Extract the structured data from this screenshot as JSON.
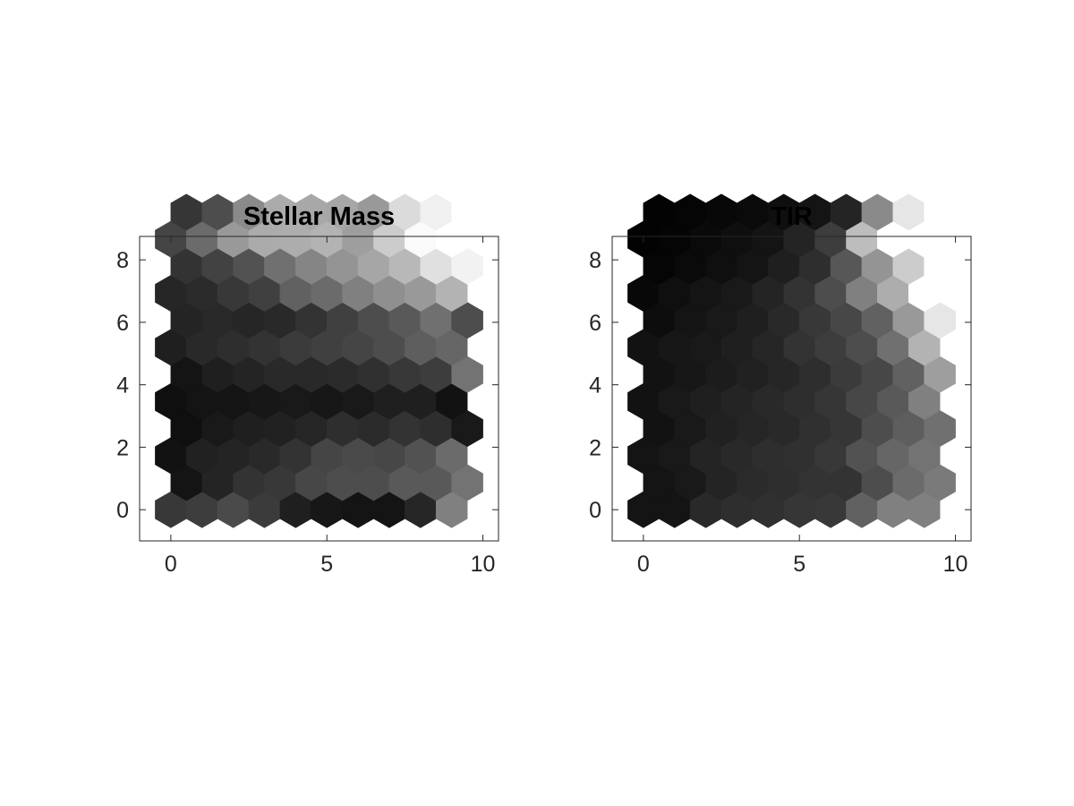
{
  "chart_data": [
    {
      "type": "heatmap",
      "title": "Stellar Mass",
      "xlabel": "",
      "ylabel": "",
      "xlim": [
        -1,
        10.5
      ],
      "ylim": [
        -1,
        8.75
      ],
      "xticks": [
        0,
        5,
        10
      ],
      "yticks": [
        0,
        2,
        4,
        6,
        8
      ],
      "grid": false,
      "colormap": "gray",
      "cells": [
        [
          0.78,
          0.76,
          0.71,
          0.77,
          0.88,
          0.91,
          0.92,
          0.92,
          0.85,
          0.5
        ],
        [
          0.92,
          0.86,
          0.8,
          0.78,
          0.72,
          0.7,
          0.7,
          0.65,
          0.65,
          0.55
        ],
        [
          0.93,
          0.87,
          0.86,
          0.84,
          0.8,
          0.73,
          0.71,
          0.72,
          0.68,
          0.58
        ],
        [
          0.94,
          0.9,
          0.88,
          0.87,
          0.85,
          0.82,
          0.83,
          0.8,
          0.82,
          0.9
        ],
        [
          0.94,
          0.92,
          0.92,
          0.91,
          0.9,
          0.91,
          0.9,
          0.88,
          0.88,
          0.93
        ],
        [
          0.92,
          0.88,
          0.86,
          0.84,
          0.84,
          0.83,
          0.81,
          0.78,
          0.76,
          0.55
        ],
        [
          0.88,
          0.84,
          0.82,
          0.8,
          0.77,
          0.75,
          0.73,
          0.7,
          0.63,
          0.6
        ],
        [
          0.86,
          0.84,
          0.85,
          0.84,
          0.8,
          0.75,
          0.7,
          0.65,
          0.56,
          0.7
        ],
        [
          0.85,
          0.83,
          0.78,
          0.75,
          0.62,
          0.58,
          0.5,
          0.44,
          0.4,
          0.3
        ],
        [
          0.8,
          0.74,
          0.68,
          0.56,
          0.48,
          0.42,
          0.35,
          0.28,
          0.12,
          0.05
        ],
        [
          0.73,
          0.58,
          0.4,
          0.33,
          0.32,
          0.3,
          0.38,
          0.2,
          0.02,
          0.0
        ],
        [
          0.79,
          0.7,
          0.46,
          0.33,
          0.34,
          0.35,
          0.4,
          0.14,
          0.06,
          0.0
        ]
      ]
    },
    {
      "type": "heatmap",
      "title": "TIR",
      "xlabel": "",
      "ylabel": "",
      "xlim": [
        -1,
        10.5
      ],
      "ylim": [
        -1,
        8.75
      ],
      "xticks": [
        0,
        5,
        10
      ],
      "yticks": [
        0,
        2,
        4,
        6,
        8
      ],
      "grid": false,
      "colormap": "gray",
      "cells": [
        [
          0.92,
          0.92,
          0.84,
          0.82,
          0.81,
          0.79,
          0.78,
          0.62,
          0.5,
          0.5
        ],
        [
          0.92,
          0.9,
          0.86,
          0.83,
          0.82,
          0.8,
          0.8,
          0.7,
          0.58,
          0.52
        ],
        [
          0.92,
          0.9,
          0.86,
          0.84,
          0.82,
          0.81,
          0.78,
          0.68,
          0.6,
          0.55
        ],
        [
          0.93,
          0.9,
          0.87,
          0.85,
          0.84,
          0.81,
          0.79,
          0.7,
          0.63,
          0.56
        ],
        [
          0.93,
          0.9,
          0.88,
          0.86,
          0.84,
          0.82,
          0.79,
          0.72,
          0.65,
          0.5
        ],
        [
          0.93,
          0.91,
          0.89,
          0.87,
          0.85,
          0.82,
          0.77,
          0.72,
          0.62,
          0.38
        ],
        [
          0.93,
          0.91,
          0.9,
          0.88,
          0.85,
          0.8,
          0.76,
          0.7,
          0.56,
          0.3
        ],
        [
          0.95,
          0.92,
          0.9,
          0.88,
          0.84,
          0.78,
          0.72,
          0.62,
          0.4,
          0.1
        ],
        [
          0.97,
          0.94,
          0.92,
          0.9,
          0.86,
          0.8,
          0.7,
          0.5,
          0.32,
          0.0
        ],
        [
          0.98,
          0.96,
          0.94,
          0.92,
          0.88,
          0.82,
          0.66,
          0.42,
          0.2,
          0.0
        ],
        [
          0.99,
          0.98,
          0.96,
          0.94,
          0.92,
          0.86,
          0.76,
          0.26,
          0.0,
          0.0
        ],
        [
          0.99,
          0.98,
          0.97,
          0.96,
          0.94,
          0.92,
          0.86,
          0.46,
          0.1,
          0.0
        ]
      ]
    }
  ]
}
